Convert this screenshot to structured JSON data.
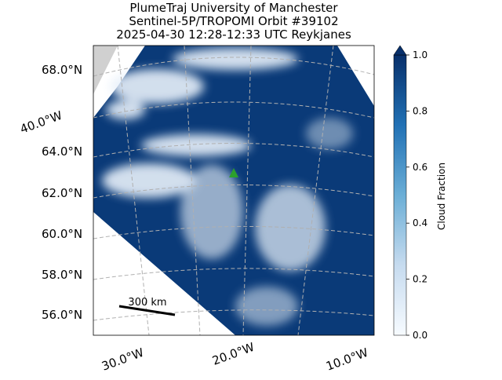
{
  "title": [
    "PlumeTraj    University of Manchester",
    "Sentinel-5P/TROPOMI Orbit #39102",
    "2025-04-30    12:28-12:33 UTC    Reykjanes"
  ],
  "lat_labels": [
    "68.0°N",
    "64.0°N",
    "62.0°N",
    "60.0°N",
    "58.0°N",
    "56.0°N"
  ],
  "lon_labels": [
    "40.0°W",
    "30.0°W",
    "20.0°W",
    "10.0°W"
  ],
  "scale_bar": "300 km",
  "colorbar": {
    "label": "Cloud Fraction",
    "lim": [
      0,
      1
    ],
    "ticks": [
      {
        "value": 0,
        "label": "0.0"
      },
      0.2,
      0.4,
      0.6,
      0.8,
      {
        "value": 1,
        "label": "1.0"
      }
    ]
  }
}
